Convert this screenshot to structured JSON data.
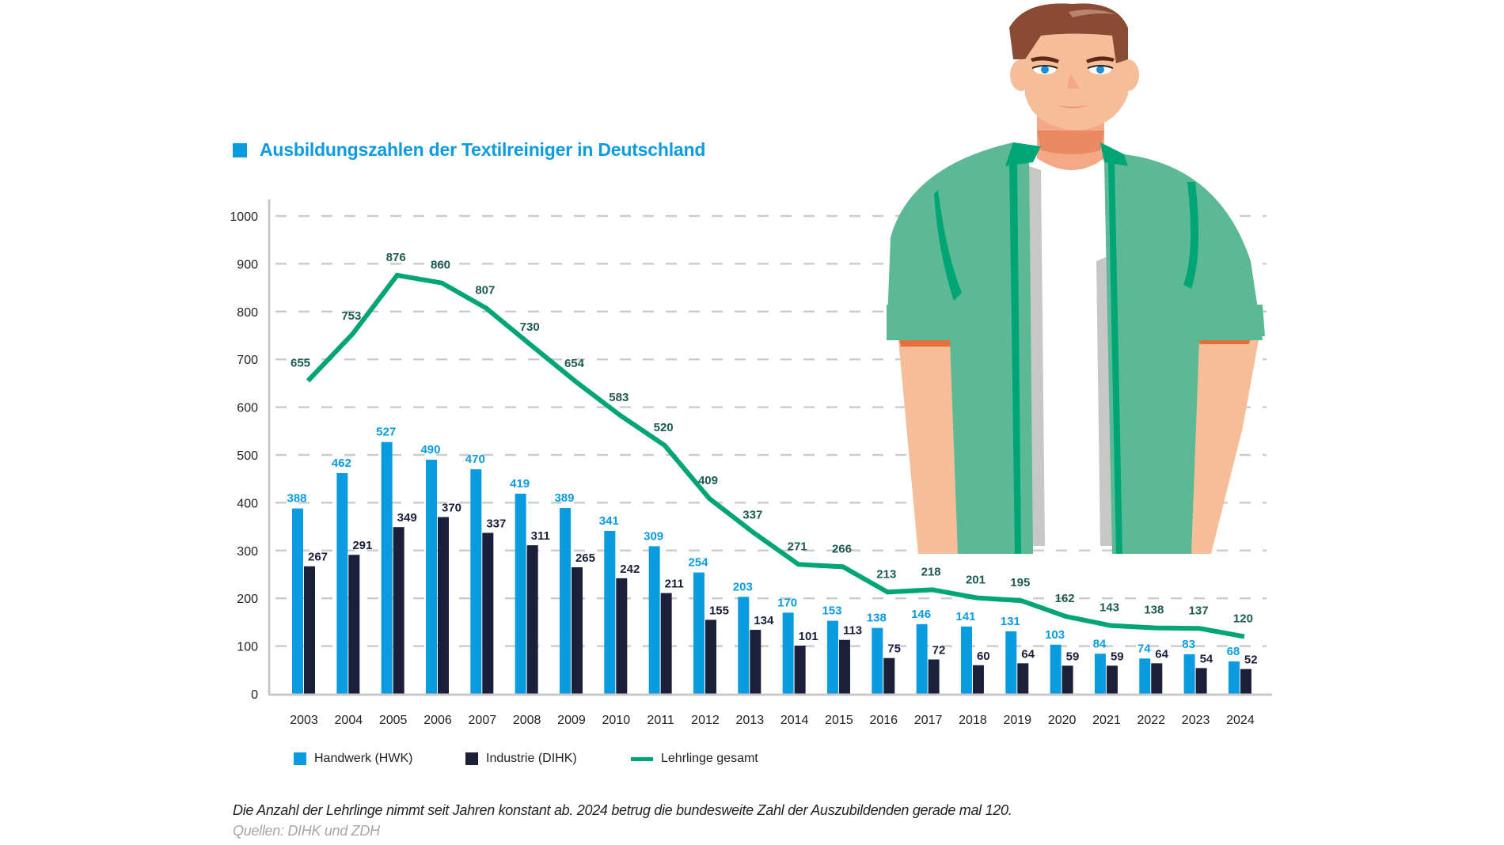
{
  "chart_data": {
    "type": "bar",
    "title": "Ausbildungszahlen der Textilreiniger in Deutschland",
    "xlabel": "",
    "ylabel": "",
    "ylim": [
      0,
      1000
    ],
    "yticks": [
      0,
      100,
      200,
      300,
      400,
      500,
      600,
      700,
      800,
      900,
      1000
    ],
    "grid": true,
    "legend_position": "bottom-left",
    "categories": [
      "2003",
      "2004",
      "2005",
      "2006",
      "2007",
      "2008",
      "2009",
      "2010",
      "2011",
      "2012",
      "2013",
      "2014",
      "2015",
      "2016",
      "2017",
      "2018",
      "2019",
      "2020",
      "2021",
      "2022",
      "2023",
      "2024"
    ],
    "series": [
      {
        "name": "Handwerk (HWK)",
        "type": "bar",
        "color": "#0a9be0",
        "label_color": "#0a9be0",
        "values": [
          388,
          462,
          527,
          490,
          470,
          419,
          389,
          341,
          309,
          254,
          203,
          170,
          153,
          138,
          146,
          141,
          131,
          103,
          84,
          74,
          83,
          68
        ]
      },
      {
        "name": "Industrie (DIHK)",
        "type": "bar",
        "color": "#1b1f3a",
        "label_color": "#1b1f3a",
        "values": [
          267,
          291,
          349,
          370,
          337,
          311,
          265,
          242,
          211,
          155,
          134,
          101,
          113,
          75,
          72,
          60,
          64,
          59,
          59,
          64,
          54,
          52
        ]
      },
      {
        "name": "Lehrlinge gesamt",
        "type": "line",
        "color": "#00a575",
        "label_color": "#1d5a52",
        "values": [
          655,
          753,
          876,
          860,
          807,
          730,
          654,
          583,
          520,
          409,
          337,
          271,
          266,
          213,
          218,
          201,
          195,
          162,
          143,
          138,
          137,
          120
        ]
      }
    ]
  },
  "caption": "Die Anzahl der Lehrlinge nimmt seit Jahren konstant ab. 2024 betrug die bundesweite Zahl der Auszubildenden gerade mal 120.",
  "source": "Quellen: DIHK und ZDH",
  "illustration": "young-man-in-green-shirt",
  "colors": {
    "accent": "#0a9be0",
    "industrie": "#1b1f3a",
    "line": "#00a575",
    "grid": "#cccccc",
    "axis": "#c8c8c8"
  }
}
